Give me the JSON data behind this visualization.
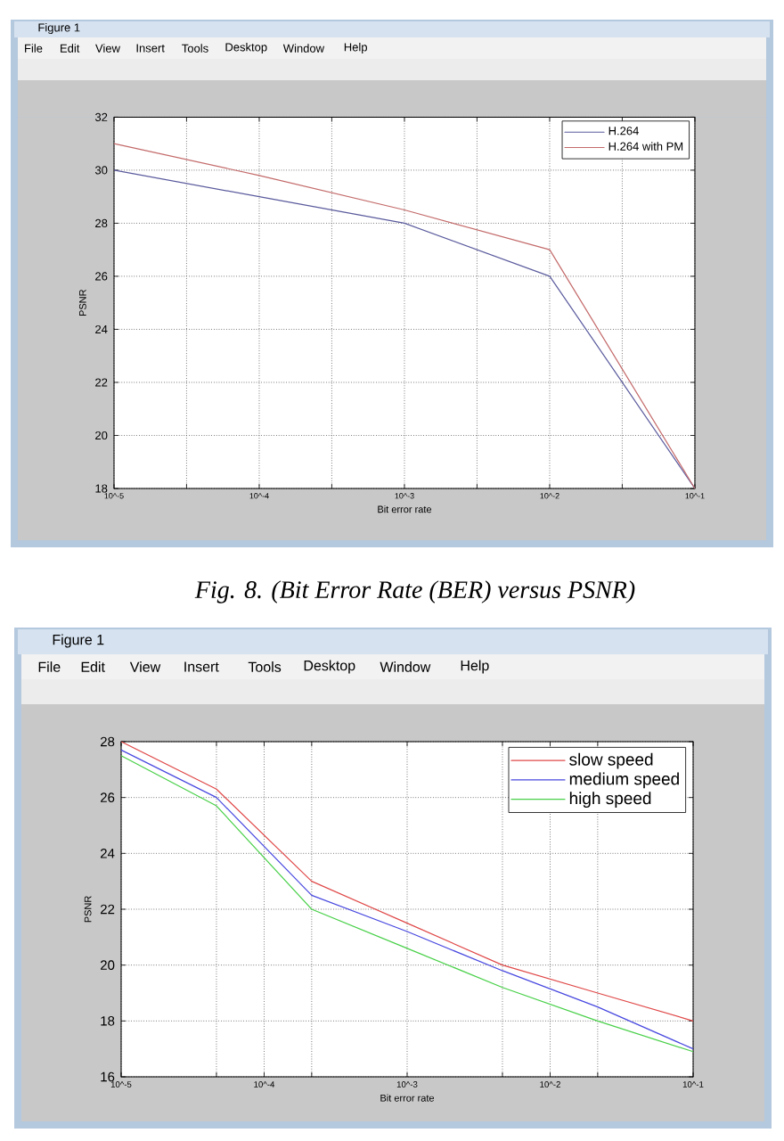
{
  "chart_data": [
    {
      "type": "line",
      "title": "Figure 1",
      "xlabel": "Bit error rate",
      "ylabel": "PSNR",
      "log": "x",
      "xlim": [
        1e-05,
        0.1
      ],
      "xticks": [
        {
          "value": 1e-05,
          "label": "10^-5"
        },
        {
          "value": 3.16e-05,
          "label": null
        },
        {
          "value": 0.0001,
          "label": "10^-4"
        },
        {
          "value": 0.000316,
          "label": null
        },
        {
          "value": 0.001,
          "label": "10^-3"
        },
        {
          "value": 0.00316,
          "label": null
        },
        {
          "value": 0.01,
          "label": "10^-2"
        },
        {
          "value": 0.0316,
          "label": null
        },
        {
          "value": 0.1,
          "label": "10^-1"
        }
      ],
      "ylim": [
        18,
        32
      ],
      "yticks": [
        18,
        20,
        22,
        24,
        26,
        28,
        30,
        32
      ],
      "x": [
        1e-05,
        0.0001,
        0.001,
        0.01,
        0.1
      ],
      "series": [
        {
          "name": "H.264",
          "color": "#5b5b9e",
          "values": [
            30,
            29,
            28,
            26,
            18
          ]
        },
        {
          "name": "H.264 with PM",
          "color": "#c46a6a",
          "values": [
            31,
            29.8,
            28.5,
            27,
            18
          ]
        }
      ],
      "grid": true,
      "legend": "top right",
      "annotations": [
        "File",
        "Edit",
        "View",
        "Insert",
        "Tools",
        "Desktop",
        "Window",
        "Help",
        "Fig. 8. (Bit Error Rate (BER) versus PSNR)"
      ]
    },
    {
      "type": "line",
      "title": "Figure 1",
      "xlabel": "Bit error rate",
      "ylabel": "PSNR",
      "log": "x",
      "xlim": [
        1e-05,
        0.1
      ],
      "xticks": [
        {
          "value": 1e-05,
          "label": "10^-5"
        },
        {
          "value": 4.64e-05,
          "label": null
        },
        {
          "value": 0.0001,
          "label": "10^-4"
        },
        {
          "value": 0.000215,
          "label": null
        },
        {
          "value": 0.001,
          "label": "10^-3"
        },
        {
          "value": 0.00464,
          "label": null
        },
        {
          "value": 0.01,
          "label": "10^-2"
        },
        {
          "value": 0.0215,
          "label": null
        },
        {
          "value": 0.1,
          "label": "10^-1"
        }
      ],
      "ylim": [
        16,
        28
      ],
      "yticks": [
        16,
        18,
        20,
        22,
        24,
        26,
        28
      ],
      "x": [
        1e-05,
        4.64e-05,
        0.000215,
        0.001,
        0.00464,
        0.0215,
        0.1
      ],
      "series": [
        {
          "name": "slow speed",
          "color": "#e04848",
          "values": [
            28,
            26.3,
            23,
            21.5,
            20,
            19,
            18
          ]
        },
        {
          "name": "medium speed",
          "color": "#4848e0",
          "values": [
            27.7,
            26,
            22.5,
            21.2,
            19.8,
            18.5,
            17
          ]
        },
        {
          "name": "high speed",
          "color": "#48d048",
          "values": [
            27.5,
            25.7,
            22,
            20.6,
            19.2,
            18,
            16.9
          ]
        }
      ],
      "grid": true,
      "legend": "top right",
      "annotations": [
        "File",
        "Edit",
        "View",
        "Insert",
        "Tools",
        "Desktop",
        "Window",
        "Help"
      ]
    }
  ]
}
